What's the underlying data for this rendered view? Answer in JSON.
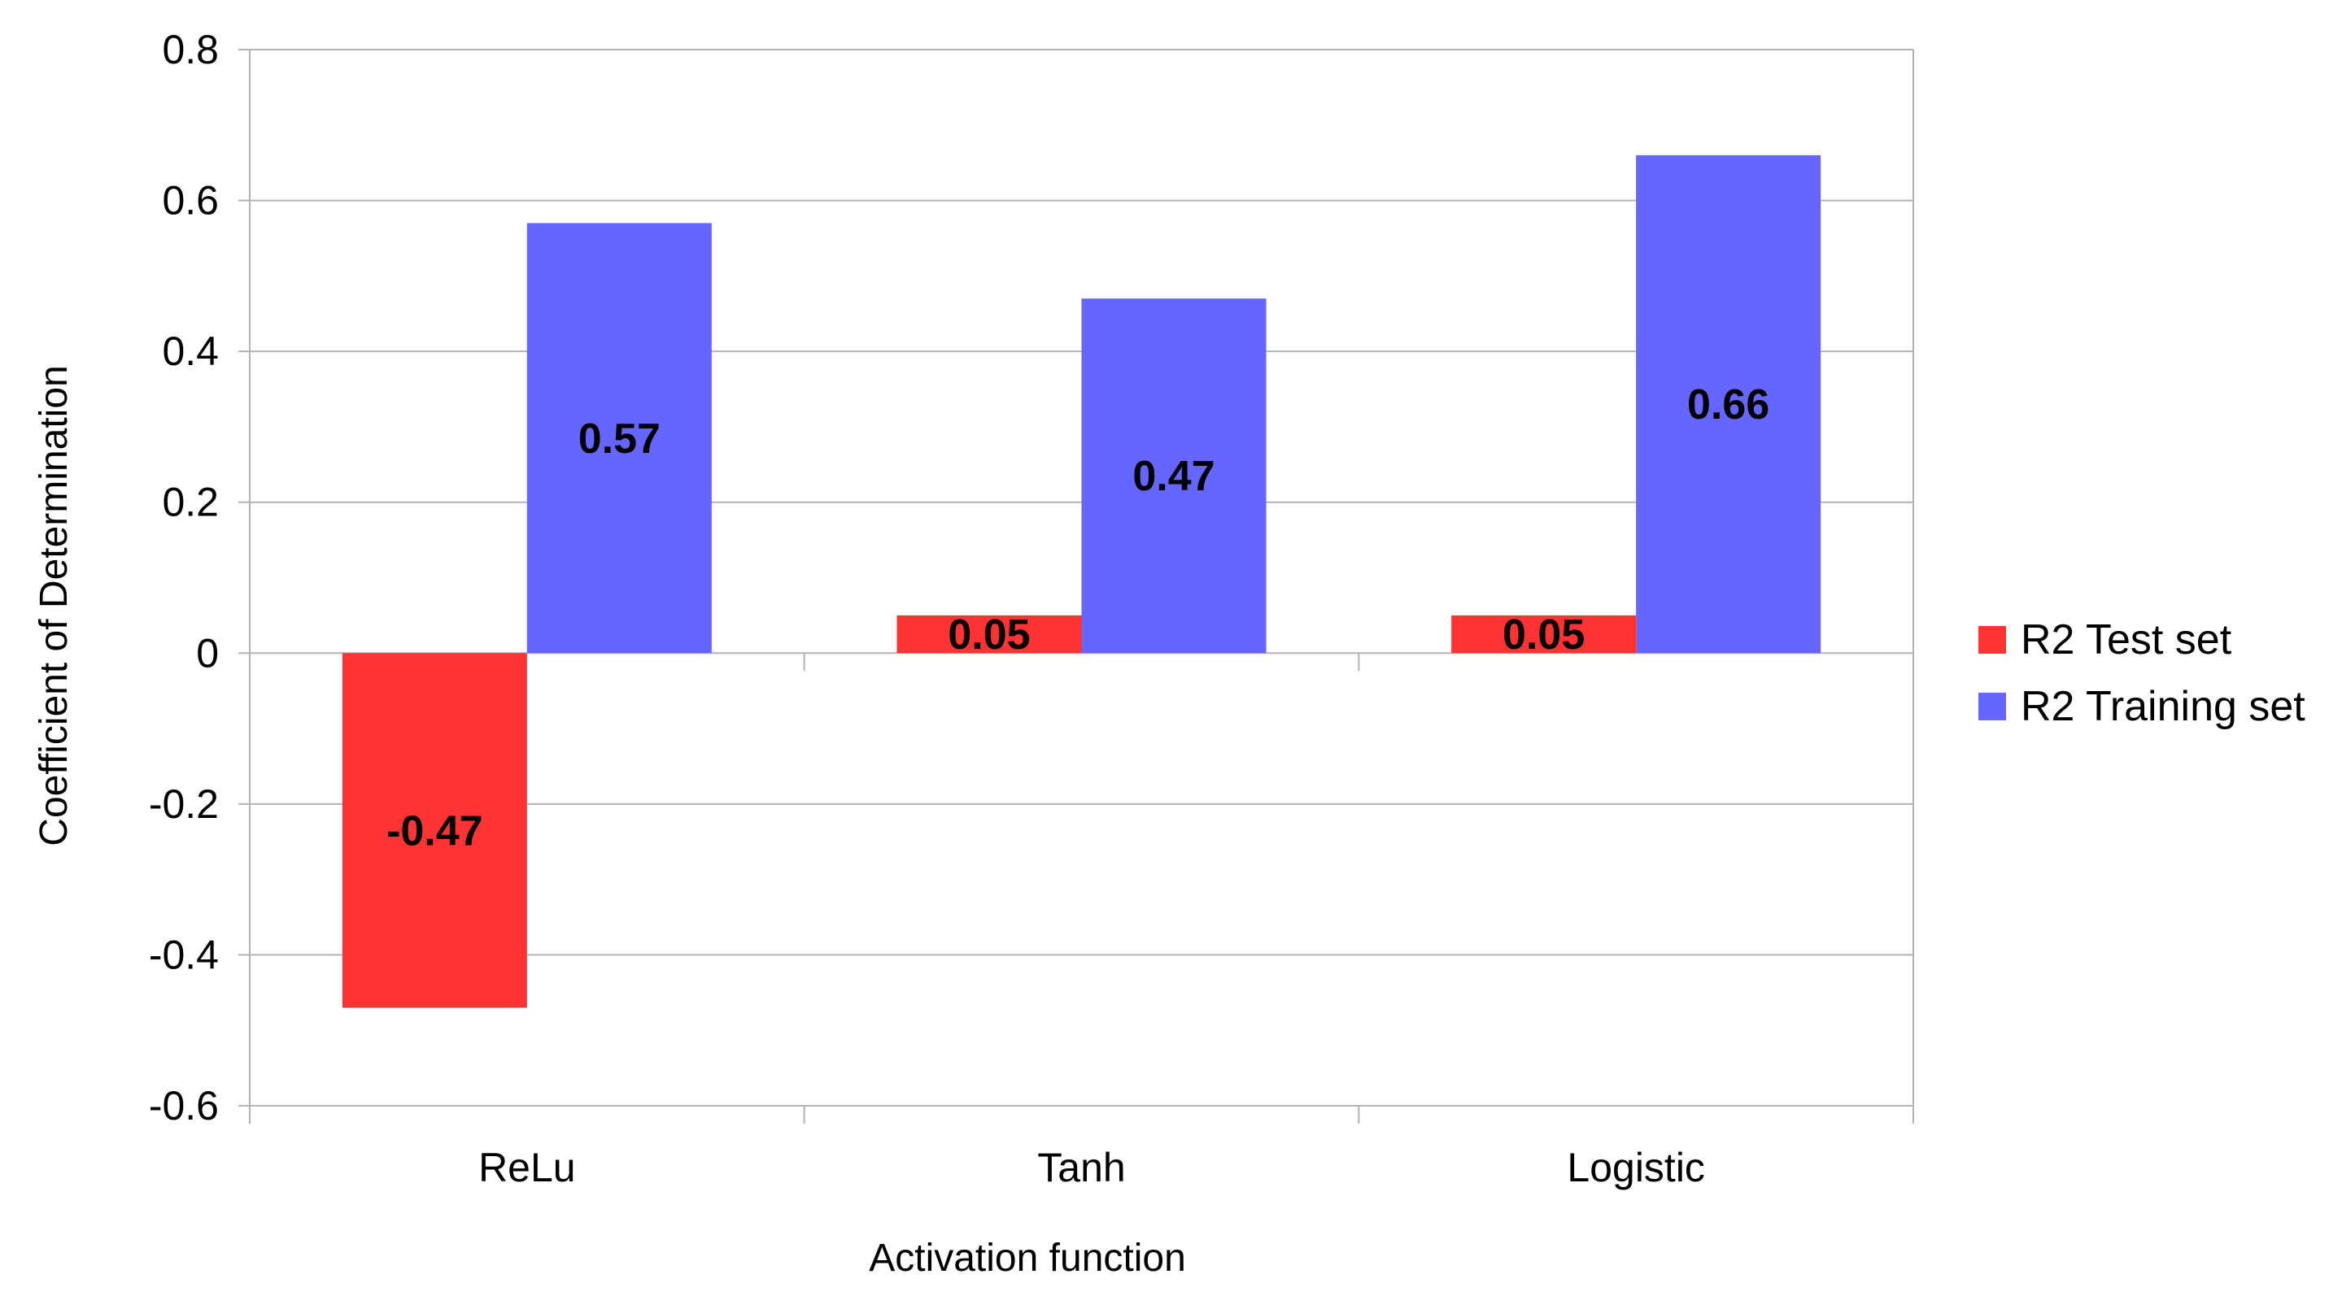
{
  "chart_data": {
    "type": "bar",
    "title": "",
    "xlabel": "Activation function",
    "ylabel": "Coefficient of Determination",
    "categories": [
      "ReLu",
      "Tanh",
      "Logistic"
    ],
    "series": [
      {
        "name": "R2 Test set",
        "color": "#ff3333",
        "values": [
          -0.47,
          0.05,
          0.05
        ],
        "labels": [
          "-0.47",
          "0.05",
          "0.05"
        ]
      },
      {
        "name": "R2 Training set",
        "color": "#6666ff",
        "values": [
          0.57,
          0.47,
          0.66
        ],
        "labels": [
          "0.57",
          "0.47",
          "0.66"
        ]
      }
    ],
    "ylim": [
      -0.6,
      0.8
    ],
    "yticks": [
      -0.6,
      -0.4,
      -0.2,
      0,
      0.2,
      0.4,
      0.6,
      0.8
    ],
    "ytick_labels": [
      "-0.6",
      "-0.4",
      "-0.2",
      "0",
      "0.2",
      "0.4",
      "0.6",
      "0.8"
    ],
    "grid": true,
    "legend_position": "right"
  }
}
